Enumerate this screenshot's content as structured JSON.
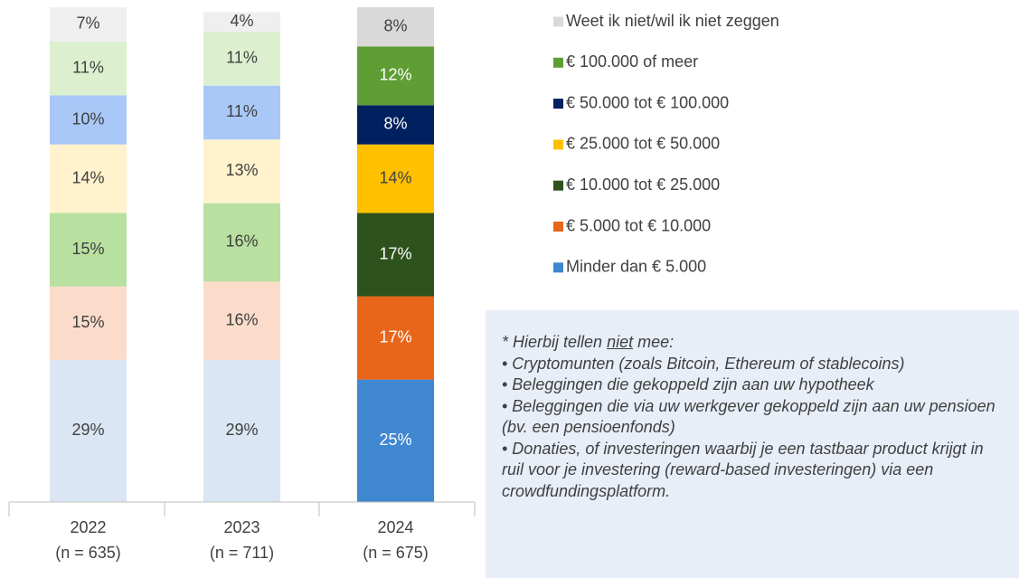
{
  "chart_data": {
    "type": "stacked_bar",
    "categories": [
      "2022",
      "2023",
      "2024"
    ],
    "category_sublabels": [
      "(n = 635)",
      "(n = 711)",
      "(n = 675)"
    ],
    "series": [
      {
        "name": "Minder dan € 5.000",
        "color": "#3f87cf",
        "colors": [
          "#dae6f3",
          "#dae6f3",
          "#3f87cf"
        ],
        "values": [
          29,
          29,
          25
        ],
        "value_labels": [
          "29%",
          "29%",
          "25%"
        ]
      },
      {
        "name": "€ 5.000 tot € 10.000",
        "color": "#e8661a",
        "colors": [
          "#fbdccb",
          "#fbdccb",
          "#e8661a"
        ],
        "values": [
          15,
          16,
          17
        ],
        "value_labels": [
          "15%",
          "16%",
          "17%"
        ]
      },
      {
        "name": "€ 10.000 tot € 25.000",
        "color": "#2e521d",
        "colors": [
          "#b8e0a0",
          "#b8e0a0",
          "#2e521d"
        ],
        "values": [
          15,
          16,
          17
        ],
        "value_labels": [
          "15%",
          "16%",
          "17%"
        ]
      },
      {
        "name": "€ 25.000 tot € 50.000",
        "color": "#ffc000",
        "colors": [
          "#fff2cc",
          "#fff2cc",
          "#ffc000"
        ],
        "values": [
          14,
          13,
          14
        ],
        "value_labels": [
          "14%",
          "13%",
          "14%"
        ]
      },
      {
        "name": "€ 50.000 tot € 100.000",
        "color": "#002060",
        "colors": [
          "#a9c8f8",
          "#a9c8f8",
          "#002060"
        ],
        "values": [
          10,
          11,
          8
        ],
        "value_labels": [
          "10%",
          "11%",
          "8%"
        ]
      },
      {
        "name": "€ 100.000 of meer",
        "color": "#5e9e35",
        "colors": [
          "#dcf0d0",
          "#dcf0d0",
          "#5e9e35"
        ],
        "values": [
          11,
          11,
          12
        ],
        "value_labels": [
          "11%",
          "11%",
          "12%"
        ]
      },
      {
        "name": "Weet ik niet/wil ik niet zeggen",
        "color": "#d9d9d9",
        "colors": [
          "#efefef",
          "#efefef",
          "#d9d9d9"
        ],
        "values": [
          7,
          4,
          8
        ],
        "value_labels": [
          "7%",
          "4%",
          "8%"
        ]
      }
    ],
    "note_title_parts": [
      "* Hierbij tellen ",
      "niet",
      " mee:"
    ],
    "note_items": [
      "• Cryptomunten (zoals Bitcoin, Ethereum of stablecoins)",
      "• Beleggingen die gekoppeld zijn aan uw hypotheek",
      "• Beleggingen die via uw werkgever gekoppeld zijn aan uw pensioen (bv. een pensioenfonds)",
      "• Donaties, of investeringen waarbij je een tastbaar product krijgt in ruil voor je investering (reward-based investeringen) via een crowdfundingsplatform."
    ]
  }
}
